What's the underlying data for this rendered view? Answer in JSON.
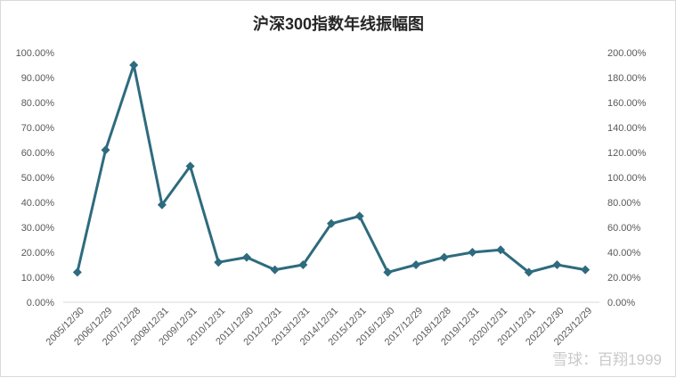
{
  "chart_data": {
    "type": "line",
    "title": "沪深300指数年线振幅图",
    "categories": [
      "2005/12/30",
      "2006/12/29",
      "2007/12/28",
      "2008/12/31",
      "2009/12/31",
      "2010/12/31",
      "2011/12/30",
      "2012/12/31",
      "2013/12/31",
      "2014/12/31",
      "2015/12/31",
      "2016/12/30",
      "2017/12/29",
      "2018/12/28",
      "2019/12/31",
      "2020/12/31",
      "2021/12/31",
      "2022/12/30",
      "2023/12/29"
    ],
    "series": [
      {
        "values": [
          0.12,
          0.61,
          0.95,
          0.39,
          0.545,
          0.16,
          0.18,
          0.13,
          0.15,
          0.315,
          0.345,
          0.12,
          0.15,
          0.18,
          0.2,
          0.21,
          0.12,
          0.15,
          0.13
        ],
        "color": "#2e6b7e"
      }
    ],
    "y_left": {
      "ylim": [
        0,
        1
      ],
      "ticks": [
        "0.00%",
        "10.00%",
        "20.00%",
        "30.00%",
        "40.00%",
        "50.00%",
        "60.00%",
        "70.00%",
        "80.00%",
        "90.00%",
        "100.00%"
      ]
    },
    "y_right": {
      "ylim": [
        0,
        2
      ],
      "ticks": [
        "0.00%",
        "20.00%",
        "40.00%",
        "60.00%",
        "80.00%",
        "100.00%",
        "120.00%",
        "140.00%",
        "160.00%",
        "180.00%",
        "200.00%"
      ]
    },
    "grid": false,
    "legend": "none"
  },
  "watermark": "雪球：百翔1999"
}
